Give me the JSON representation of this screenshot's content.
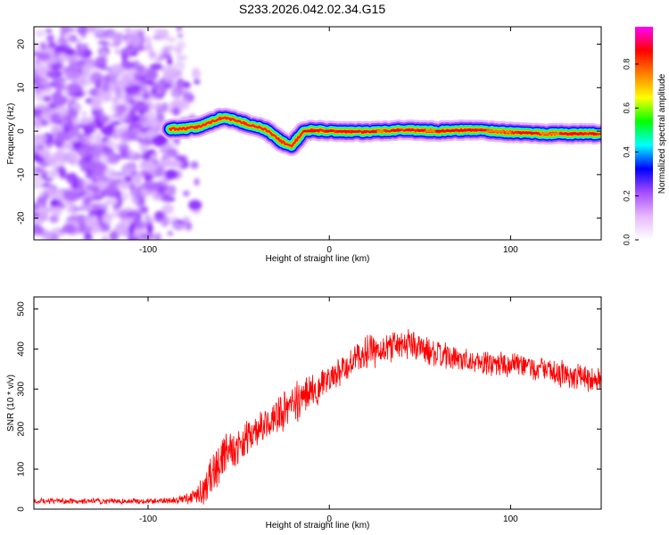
{
  "title": "S233.2026.042.02.34.G15",
  "colors": {
    "snr_line": "#ff0000",
    "spectral_scatter": "#9c4dff",
    "colormap": [
      "#ffffff",
      "#e7b8ff",
      "#a64dff",
      "#0000ff",
      "#00ffff",
      "#00ff00",
      "#ffff00",
      "#ff8000",
      "#ff0000",
      "#ff00ff"
    ]
  },
  "chart_data": [
    {
      "type": "heatmap",
      "name": "spectrogram",
      "xlabel": "Height of straight line (km)",
      "ylabel": "Frequency (Hz)",
      "xlim": [
        -163,
        150
      ],
      "ylim": [
        -25,
        24
      ],
      "xticks": [
        -100,
        0,
        100
      ],
      "xtick_labels": [
        "-100",
        "0",
        "100"
      ],
      "yticks": [
        -20,
        -10,
        0,
        10,
        20
      ],
      "ytick_labels": [
        "-20",
        "-10",
        "0",
        "10",
        "20"
      ],
      "colorbar": {
        "label": "Normalized spectral amplitude",
        "range": [
          0,
          0.97
        ],
        "ticks": [
          0.0,
          0.2,
          0.4,
          0.6,
          0.8
        ],
        "tick_labels": [
          "0.0",
          "0.2",
          "0.4",
          "0.6",
          "0.8"
        ]
      },
      "noise_region_x": [
        -163,
        -78
      ],
      "ridge": {
        "x": [
          -88,
          -80,
          -72,
          -66,
          -60,
          -55,
          -50,
          -45,
          -40,
          -35,
          -30,
          -27,
          -24,
          -21,
          -18,
          -14,
          -10,
          0,
          20,
          40,
          60,
          80,
          100,
          120,
          150
        ],
        "y": [
          0.5,
          0.5,
          1.0,
          2.0,
          3.0,
          2.8,
          2.2,
          1.6,
          1.0,
          0.3,
          -1.2,
          -2.2,
          -3.0,
          -3.4,
          -2.0,
          0.0,
          0.2,
          0.0,
          -0.2,
          0.3,
          0.0,
          0.3,
          -0.3,
          -0.6,
          -0.6
        ],
        "peak_amplitude": 0.97
      }
    },
    {
      "type": "line",
      "name": "snr",
      "xlabel": "Height of straight line (km)",
      "ylabel": "SNR (10 * v/v)",
      "xlim": [
        -163,
        150
      ],
      "ylim": [
        0,
        530
      ],
      "xticks": [
        -100,
        0,
        100
      ],
      "xtick_labels": [
        "-100",
        "0",
        "100"
      ],
      "yticks": [
        0,
        100,
        200,
        300,
        400,
        500
      ],
      "ytick_labels": [
        "0",
        "100",
        "200",
        "300",
        "400",
        "500"
      ],
      "series": [
        {
          "name": "SNR",
          "x": [
            -163,
            -140,
            -120,
            -100,
            -85,
            -75,
            -68,
            -62,
            -58,
            -50,
            -40,
            -30,
            -20,
            -10,
            0,
            10,
            20,
            30,
            40,
            50,
            60,
            70,
            80,
            90,
            100,
            110,
            120,
            130,
            140,
            150
          ],
          "mean": [
            20,
            20,
            20,
            20,
            22,
            30,
            60,
            110,
            140,
            160,
            190,
            230,
            260,
            300,
            320,
            355,
            390,
            400,
            420,
            400,
            385,
            375,
            370,
            365,
            360,
            355,
            345,
            335,
            330,
            325
          ],
          "amplitude": [
            6,
            6,
            6,
            6,
            8,
            15,
            40,
            45,
            45,
            40,
            35,
            40,
            45,
            40,
            35,
            35,
            35,
            35,
            35,
            30,
            30,
            28,
            28,
            28,
            28,
            28,
            28,
            28,
            28,
            28
          ]
        }
      ]
    }
  ]
}
